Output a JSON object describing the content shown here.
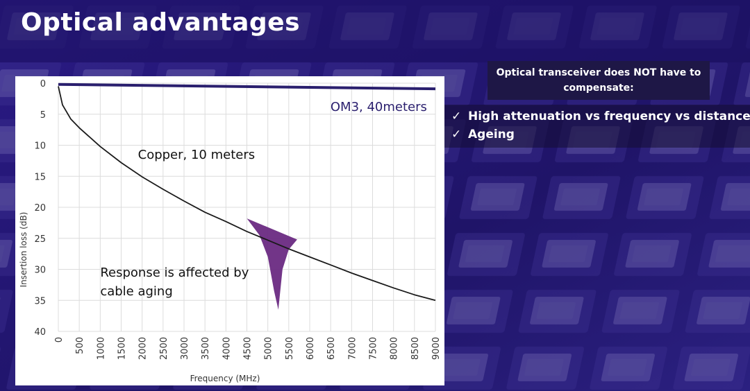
{
  "slide": {
    "title": "Optical advantages",
    "callout": "Optical transceiver does NOT have to compensate:",
    "bullets": [
      {
        "icon": "check-icon",
        "glyph": "✓",
        "text": "High attenuation vs frequency vs distance"
      },
      {
        "icon": "check-icon",
        "glyph": "✓",
        "text": "Ageing"
      }
    ]
  },
  "colors": {
    "background": "#241672",
    "optical_series": "#2a1f6e",
    "copper_series": "#1a1a1a",
    "aging_fill": "#6a2a82"
  },
  "chart_data": {
    "type": "line",
    "title": "",
    "xlabel": "Frequency (MHz)",
    "ylabel": "Insertion loss (dB)",
    "xlim": [
      0,
      9000
    ],
    "ylim": [
      0,
      40
    ],
    "y_inverted": true,
    "x_ticks": [
      0,
      500,
      1000,
      1500,
      2000,
      2500,
      3000,
      3500,
      4000,
      4500,
      5000,
      5500,
      6000,
      6500,
      7000,
      7500,
      8000,
      8500,
      9000
    ],
    "y_ticks": [
      0,
      5,
      10,
      15,
      20,
      25,
      30,
      35,
      40
    ],
    "grid": true,
    "series": [
      {
        "name": "OM3, 40meters",
        "x": [
          0,
          9000
        ],
        "y": [
          0.2,
          0.9
        ]
      },
      {
        "name": "Copper, 10 meters",
        "x": [
          0,
          100,
          300,
          500,
          1000,
          1500,
          2000,
          2500,
          3000,
          3500,
          4000,
          4500,
          5000,
          5500,
          6000,
          6500,
          7000,
          7500,
          8000,
          8500,
          9000
        ],
        "y": [
          0.5,
          3.5,
          5.8,
          7.2,
          10.2,
          12.8,
          15.1,
          17.1,
          19.0,
          20.8,
          22.3,
          23.9,
          25.3,
          26.7,
          28.0,
          29.3,
          30.6,
          31.8,
          33.0,
          34.1,
          35.0
        ]
      }
    ],
    "aging_region": {
      "x": [
        4500,
        4800,
        5000,
        5150,
        5250,
        5350,
        5500,
        5700
      ],
      "y": [
        21.8,
        24.5,
        28.0,
        33.5,
        36.5,
        30.0,
        26.8,
        25.2
      ]
    },
    "annotations": [
      {
        "text": "Copper, 10 meters",
        "x": 1900,
        "y": 11.5
      },
      {
        "text": "Response is affected by",
        "x": 1000,
        "y": 30.5
      },
      {
        "text": "cable aging",
        "x": 1000,
        "y": 33.5
      }
    ]
  }
}
